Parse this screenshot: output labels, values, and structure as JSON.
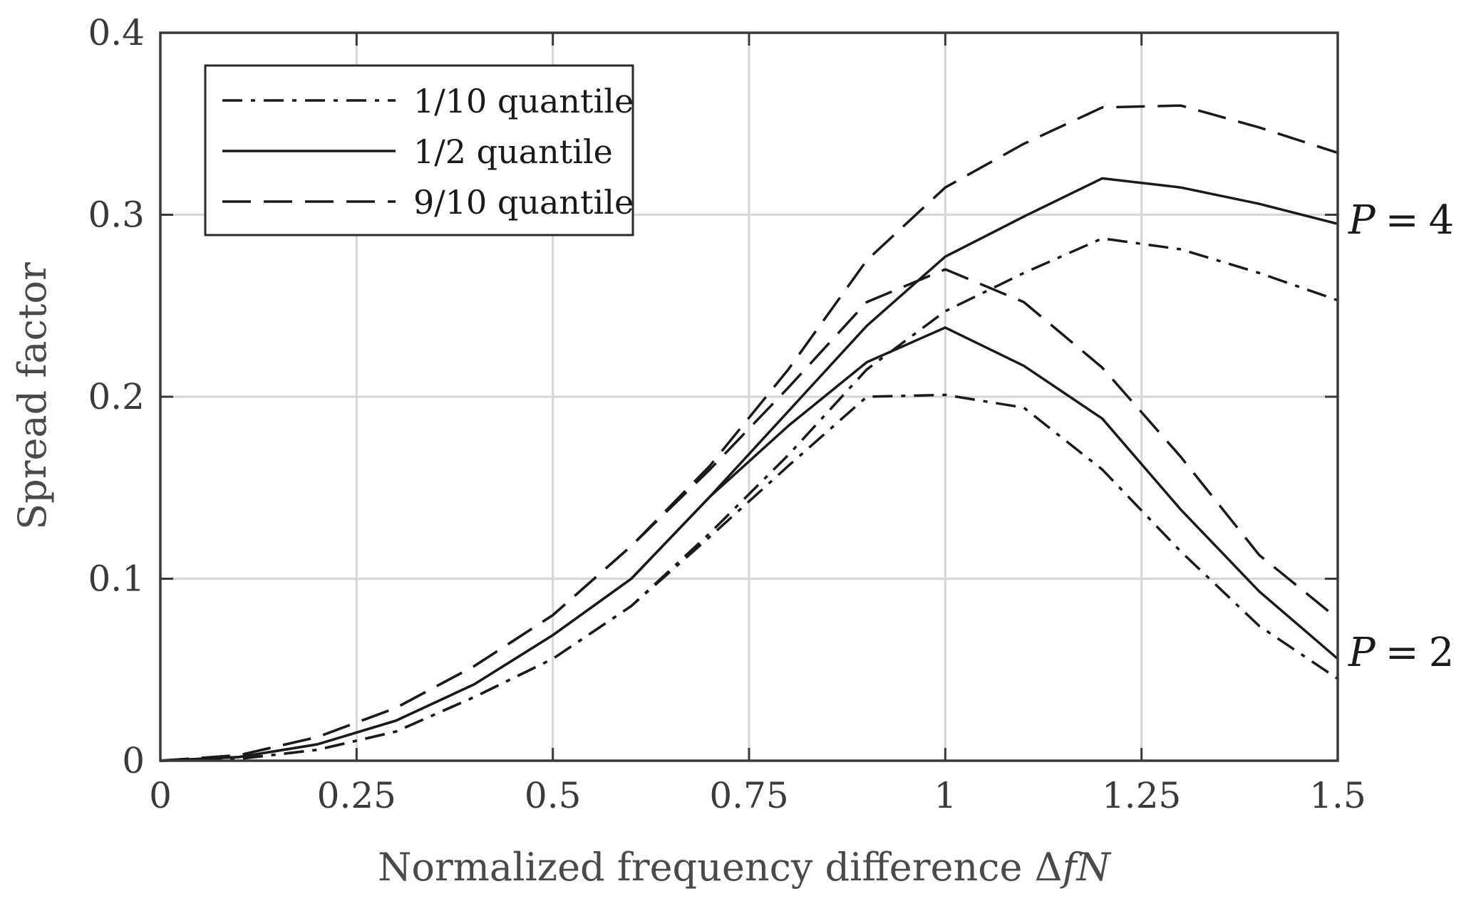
{
  "chart_data": {
    "type": "line",
    "title": "",
    "xlabel": "Normalized frequency difference ΔfN",
    "xlabel_parts": {
      "text": "Normalized frequency difference ",
      "delta": "Δ",
      "f": "f",
      "n": "N"
    },
    "ylabel": "Spread factor",
    "xlim": [
      0,
      1.5
    ],
    "ylim": [
      0,
      0.4
    ],
    "grid": true,
    "legend_position": "top-left",
    "x_ticks": [
      0,
      0.25,
      0.5,
      0.75,
      1,
      1.25,
      1.5
    ],
    "x_tick_labels": [
      "0",
      "0.25",
      "0.5",
      "0.75",
      "1",
      "1.25",
      "1.5"
    ],
    "y_ticks": [
      0,
      0.1,
      0.2,
      0.3,
      0.4
    ],
    "y_tick_labels": [
      "0",
      "0.1",
      "0.2",
      "0.3",
      "0.4"
    ],
    "legend": [
      {
        "label": "1/10 quantile",
        "style": "dashdot"
      },
      {
        "label": "1/2 quantile",
        "style": "solid"
      },
      {
        "label": "9/10 quantile",
        "style": "dashed"
      }
    ],
    "annotations": [
      {
        "label": "P = 4",
        "var": "P",
        "op": "=",
        "num": "4",
        "attached_to": "P=4 group"
      },
      {
        "label": "P = 2",
        "var": "P",
        "op": "=",
        "num": "2",
        "attached_to": "P=2 group"
      }
    ],
    "series": [
      {
        "name": "P=4, 1/10 quantile",
        "group": "P=4",
        "style": "dashdot",
        "x": [
          0,
          0.1,
          0.2,
          0.3,
          0.4,
          0.5,
          0.6,
          0.7,
          0.8,
          0.9,
          1.0,
          1.1,
          1.2,
          1.3,
          1.4,
          1.5
        ],
        "y": [
          0,
          0.001,
          0.006,
          0.016,
          0.035,
          0.056,
          0.085,
          0.125,
          0.168,
          0.215,
          0.247,
          0.268,
          0.287,
          0.281,
          0.268,
          0.253
        ]
      },
      {
        "name": "P=4, 1/2 quantile",
        "group": "P=4",
        "style": "solid",
        "x": [
          0,
          0.1,
          0.2,
          0.3,
          0.4,
          0.5,
          0.6,
          0.7,
          0.8,
          0.9,
          1.0,
          1.1,
          1.2,
          1.3,
          1.4,
          1.5
        ],
        "y": [
          0,
          0.002,
          0.009,
          0.022,
          0.042,
          0.069,
          0.1,
          0.145,
          0.192,
          0.239,
          0.277,
          0.299,
          0.32,
          0.315,
          0.306,
          0.295
        ]
      },
      {
        "name": "P=4, 9/10 quantile",
        "group": "P=4",
        "style": "dashed",
        "x": [
          0,
          0.1,
          0.2,
          0.3,
          0.4,
          0.5,
          0.6,
          0.7,
          0.8,
          0.9,
          1.0,
          1.1,
          1.2,
          1.3,
          1.4,
          1.5
        ],
        "y": [
          0,
          0.003,
          0.013,
          0.029,
          0.052,
          0.08,
          0.118,
          0.162,
          0.215,
          0.275,
          0.315,
          0.339,
          0.359,
          0.36,
          0.348,
          0.334
        ]
      },
      {
        "name": "P=2, 1/10 quantile",
        "group": "P=2",
        "style": "dashdot",
        "x": [
          0,
          0.1,
          0.2,
          0.3,
          0.4,
          0.5,
          0.6,
          0.7,
          0.8,
          0.9,
          1.0,
          1.1,
          1.2,
          1.3,
          1.4,
          1.5
        ],
        "y": [
          0,
          0.001,
          0.006,
          0.016,
          0.035,
          0.056,
          0.085,
          0.123,
          0.162,
          0.2,
          0.201,
          0.194,
          0.16,
          0.115,
          0.074,
          0.045
        ]
      },
      {
        "name": "P=2, 1/2 quantile",
        "group": "P=2",
        "style": "solid",
        "x": [
          0,
          0.1,
          0.2,
          0.3,
          0.4,
          0.5,
          0.6,
          0.7,
          0.8,
          0.9,
          1.0,
          1.1,
          1.2,
          1.3,
          1.4,
          1.5
        ],
        "y": [
          0,
          0.002,
          0.009,
          0.022,
          0.042,
          0.069,
          0.1,
          0.145,
          0.184,
          0.219,
          0.238,
          0.217,
          0.188,
          0.138,
          0.093,
          0.056
        ]
      },
      {
        "name": "P=2, 9/10 quantile",
        "group": "P=2",
        "style": "dashed",
        "x": [
          0,
          0.1,
          0.2,
          0.3,
          0.4,
          0.5,
          0.6,
          0.7,
          0.8,
          0.9,
          1.0,
          1.1,
          1.2,
          1.3,
          1.4,
          1.5
        ],
        "y": [
          0,
          0.003,
          0.013,
          0.029,
          0.052,
          0.08,
          0.118,
          0.16,
          0.205,
          0.252,
          0.27,
          0.252,
          0.216,
          0.167,
          0.113,
          0.078
        ]
      }
    ]
  },
  "colors": {
    "background": "#ffffff",
    "axes_frame": "#3a3a3a",
    "grid": "#d6d6d6",
    "lines": "#1a1a1a",
    "text": "#3a3a3a"
  }
}
